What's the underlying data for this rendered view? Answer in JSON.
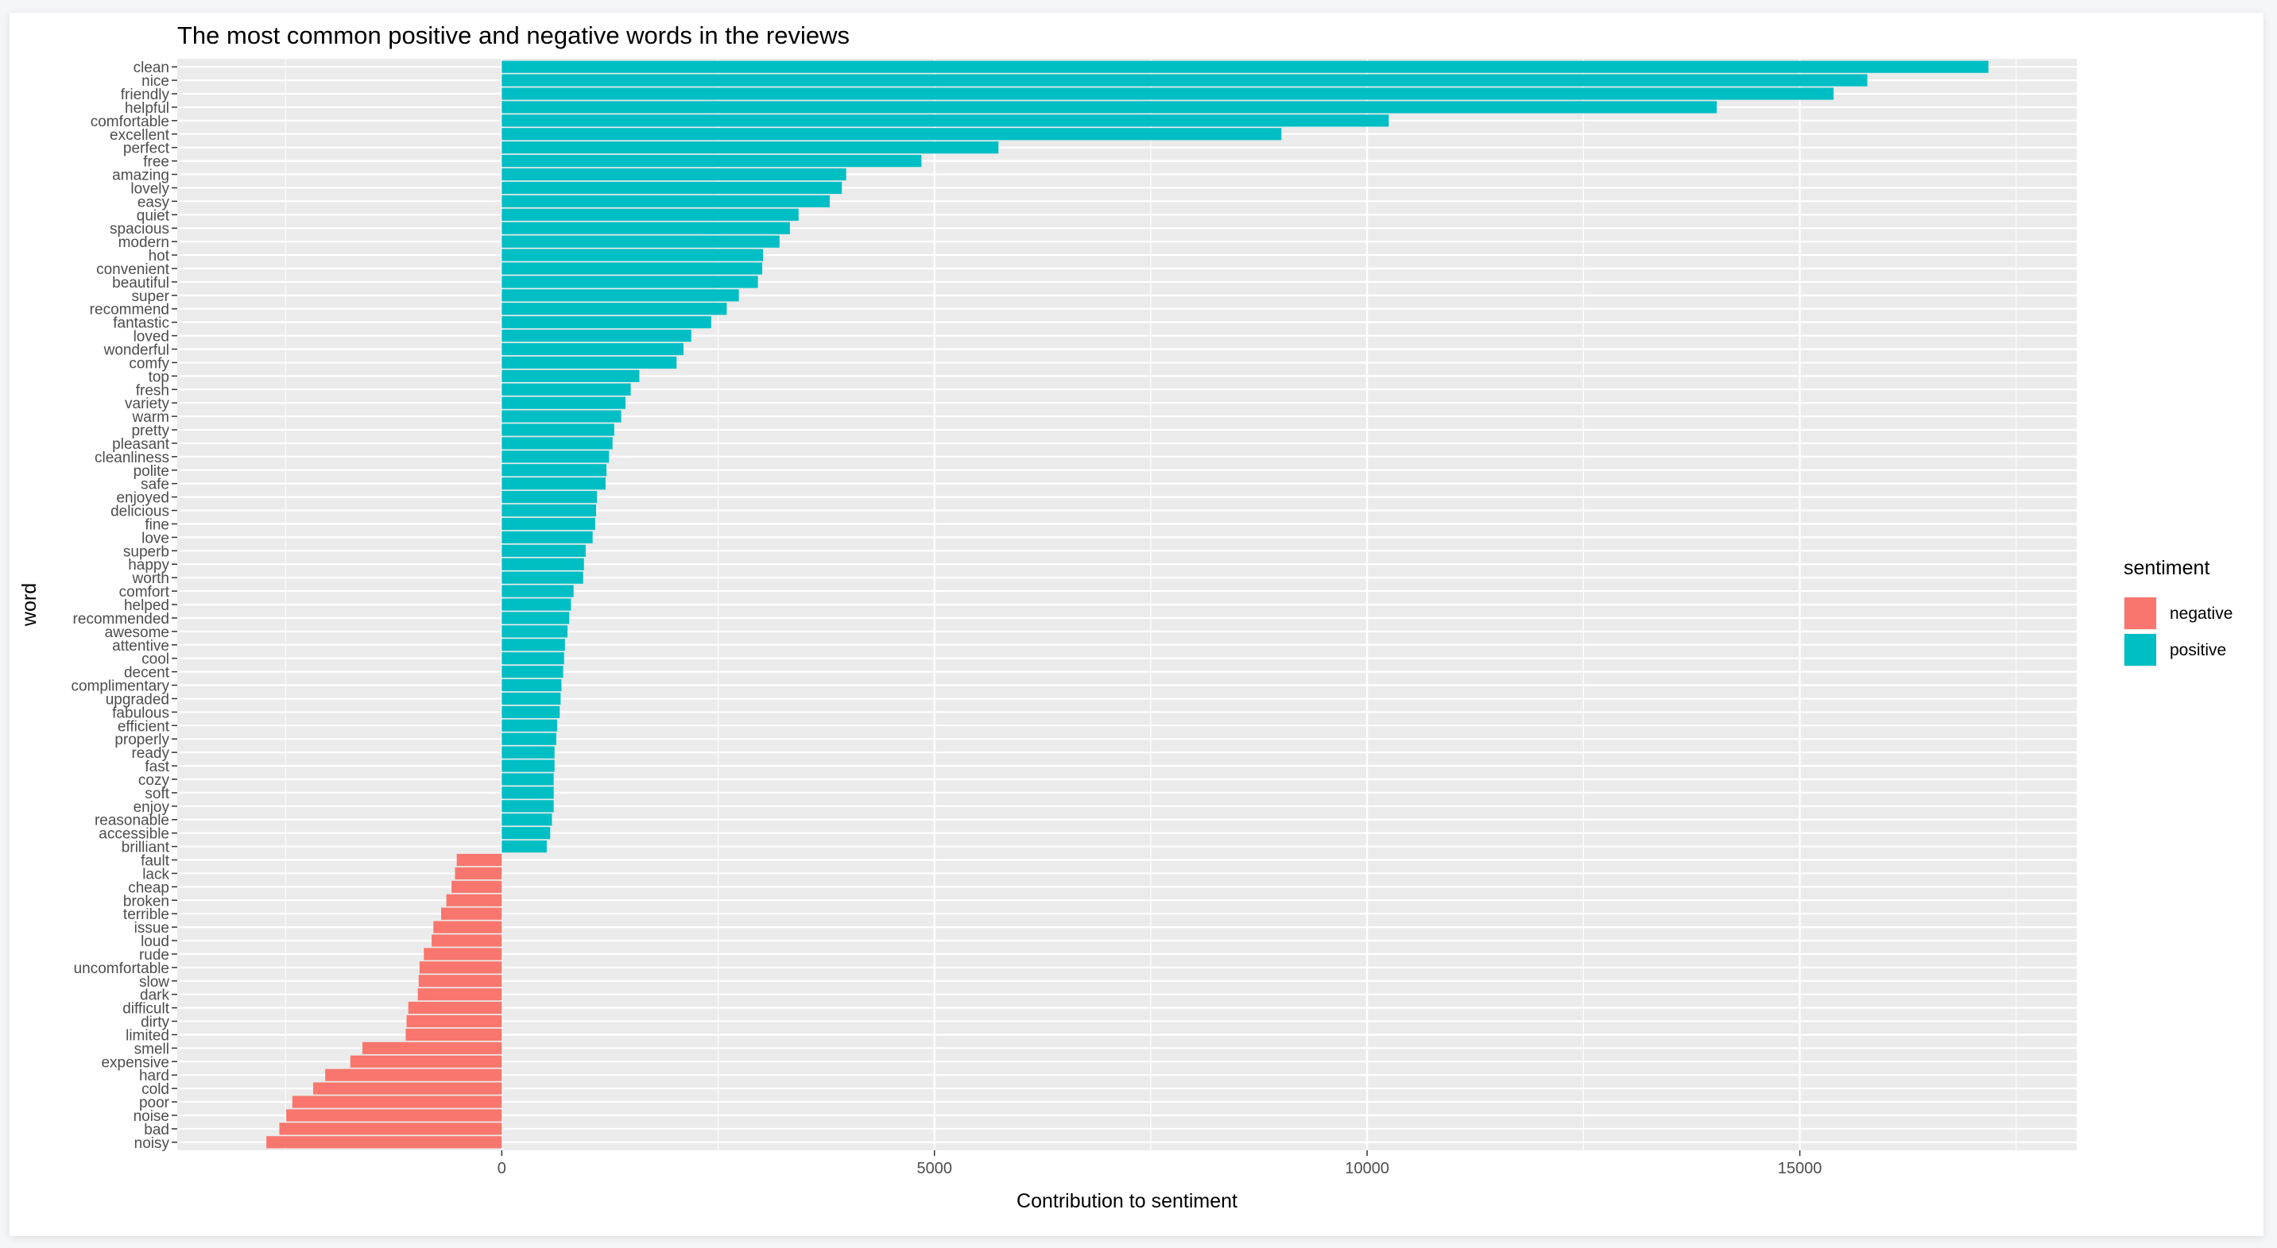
{
  "chart_data": {
    "type": "bar",
    "orientation": "horizontal",
    "title": "The most common positive and negative words in the reviews",
    "xlabel": "Contribution to sentiment",
    "ylabel": "word",
    "xlim": [
      -3750,
      18200
    ],
    "xticks": [
      0,
      5000,
      10000,
      15000
    ],
    "xtick_labels": [
      "0",
      "5000",
      "10000",
      "15000"
    ],
    "grid": true,
    "legend": {
      "title": "sentiment",
      "position": "right",
      "entries": [
        {
          "label": "negative",
          "color": "#F8766D"
        },
        {
          "label": "positive",
          "color": "#00BFC4"
        }
      ]
    },
    "bars": [
      {
        "word": "clean",
        "value": 17180,
        "sentiment": "positive"
      },
      {
        "word": "nice",
        "value": 15780,
        "sentiment": "positive"
      },
      {
        "word": "friendly",
        "value": 15390,
        "sentiment": "positive"
      },
      {
        "word": "helpful",
        "value": 14040,
        "sentiment": "positive"
      },
      {
        "word": "comfortable",
        "value": 10250,
        "sentiment": "positive"
      },
      {
        "word": "excellent",
        "value": 9010,
        "sentiment": "positive"
      },
      {
        "word": "perfect",
        "value": 5740,
        "sentiment": "positive"
      },
      {
        "word": "free",
        "value": 4850,
        "sentiment": "positive"
      },
      {
        "word": "amazing",
        "value": 3980,
        "sentiment": "positive"
      },
      {
        "word": "lovely",
        "value": 3930,
        "sentiment": "positive"
      },
      {
        "word": "easy",
        "value": 3790,
        "sentiment": "positive"
      },
      {
        "word": "quiet",
        "value": 3430,
        "sentiment": "positive"
      },
      {
        "word": "spacious",
        "value": 3330,
        "sentiment": "positive"
      },
      {
        "word": "modern",
        "value": 3210,
        "sentiment": "positive"
      },
      {
        "word": "hot",
        "value": 3020,
        "sentiment": "positive"
      },
      {
        "word": "convenient",
        "value": 3010,
        "sentiment": "positive"
      },
      {
        "word": "beautiful",
        "value": 2960,
        "sentiment": "positive"
      },
      {
        "word": "super",
        "value": 2740,
        "sentiment": "positive"
      },
      {
        "word": "recommend",
        "value": 2600,
        "sentiment": "positive"
      },
      {
        "word": "fantastic",
        "value": 2420,
        "sentiment": "positive"
      },
      {
        "word": "loved",
        "value": 2190,
        "sentiment": "positive"
      },
      {
        "word": "wonderful",
        "value": 2100,
        "sentiment": "positive"
      },
      {
        "word": "comfy",
        "value": 2020,
        "sentiment": "positive"
      },
      {
        "word": "top",
        "value": 1590,
        "sentiment": "positive"
      },
      {
        "word": "fresh",
        "value": 1490,
        "sentiment": "positive"
      },
      {
        "word": "variety",
        "value": 1430,
        "sentiment": "positive"
      },
      {
        "word": "warm",
        "value": 1380,
        "sentiment": "positive"
      },
      {
        "word": "pretty",
        "value": 1300,
        "sentiment": "positive"
      },
      {
        "word": "pleasant",
        "value": 1280,
        "sentiment": "positive"
      },
      {
        "word": "cleanliness",
        "value": 1240,
        "sentiment": "positive"
      },
      {
        "word": "polite",
        "value": 1210,
        "sentiment": "positive"
      },
      {
        "word": "safe",
        "value": 1200,
        "sentiment": "positive"
      },
      {
        "word": "enjoyed",
        "value": 1100,
        "sentiment": "positive"
      },
      {
        "word": "delicious",
        "value": 1090,
        "sentiment": "positive"
      },
      {
        "word": "fine",
        "value": 1080,
        "sentiment": "positive"
      },
      {
        "word": "love",
        "value": 1050,
        "sentiment": "positive"
      },
      {
        "word": "superb",
        "value": 970,
        "sentiment": "positive"
      },
      {
        "word": "happy",
        "value": 950,
        "sentiment": "positive"
      },
      {
        "word": "worth",
        "value": 940,
        "sentiment": "positive"
      },
      {
        "word": "comfort",
        "value": 830,
        "sentiment": "positive"
      },
      {
        "word": "helped",
        "value": 800,
        "sentiment": "positive"
      },
      {
        "word": "recommended",
        "value": 780,
        "sentiment": "positive"
      },
      {
        "word": "awesome",
        "value": 760,
        "sentiment": "positive"
      },
      {
        "word": "attentive",
        "value": 730,
        "sentiment": "positive"
      },
      {
        "word": "cool",
        "value": 720,
        "sentiment": "positive"
      },
      {
        "word": "decent",
        "value": 710,
        "sentiment": "positive"
      },
      {
        "word": "complimentary",
        "value": 690,
        "sentiment": "positive"
      },
      {
        "word": "upgraded",
        "value": 680,
        "sentiment": "positive"
      },
      {
        "word": "fabulous",
        "value": 670,
        "sentiment": "positive"
      },
      {
        "word": "efficient",
        "value": 640,
        "sentiment": "positive"
      },
      {
        "word": "properly",
        "value": 630,
        "sentiment": "positive"
      },
      {
        "word": "ready",
        "value": 610,
        "sentiment": "positive"
      },
      {
        "word": "fast",
        "value": 610,
        "sentiment": "positive"
      },
      {
        "word": "cozy",
        "value": 600,
        "sentiment": "positive"
      },
      {
        "word": "soft",
        "value": 600,
        "sentiment": "positive"
      },
      {
        "word": "enjoy",
        "value": 600,
        "sentiment": "positive"
      },
      {
        "word": "reasonable",
        "value": 580,
        "sentiment": "positive"
      },
      {
        "word": "accessible",
        "value": 560,
        "sentiment": "positive"
      },
      {
        "word": "brilliant",
        "value": 520,
        "sentiment": "positive"
      },
      {
        "word": "fault",
        "value": -520,
        "sentiment": "negative"
      },
      {
        "word": "lack",
        "value": -540,
        "sentiment": "negative"
      },
      {
        "word": "cheap",
        "value": -580,
        "sentiment": "negative"
      },
      {
        "word": "broken",
        "value": -640,
        "sentiment": "negative"
      },
      {
        "word": "terrible",
        "value": -700,
        "sentiment": "negative"
      },
      {
        "word": "issue",
        "value": -790,
        "sentiment": "negative"
      },
      {
        "word": "loud",
        "value": -810,
        "sentiment": "negative"
      },
      {
        "word": "rude",
        "value": -900,
        "sentiment": "negative"
      },
      {
        "word": "uncomfortable",
        "value": -950,
        "sentiment": "negative"
      },
      {
        "word": "slow",
        "value": -960,
        "sentiment": "negative"
      },
      {
        "word": "dark",
        "value": -970,
        "sentiment": "negative"
      },
      {
        "word": "difficult",
        "value": -1080,
        "sentiment": "negative"
      },
      {
        "word": "dirty",
        "value": -1100,
        "sentiment": "negative"
      },
      {
        "word": "limited",
        "value": -1110,
        "sentiment": "negative"
      },
      {
        "word": "smell",
        "value": -1610,
        "sentiment": "negative"
      },
      {
        "word": "expensive",
        "value": -1750,
        "sentiment": "negative"
      },
      {
        "word": "hard",
        "value": -2040,
        "sentiment": "negative"
      },
      {
        "word": "cold",
        "value": -2180,
        "sentiment": "negative"
      },
      {
        "word": "poor",
        "value": -2420,
        "sentiment": "negative"
      },
      {
        "word": "noise",
        "value": -2490,
        "sentiment": "negative"
      },
      {
        "word": "bad",
        "value": -2570,
        "sentiment": "negative"
      },
      {
        "word": "noisy",
        "value": -2720,
        "sentiment": "negative"
      }
    ]
  }
}
